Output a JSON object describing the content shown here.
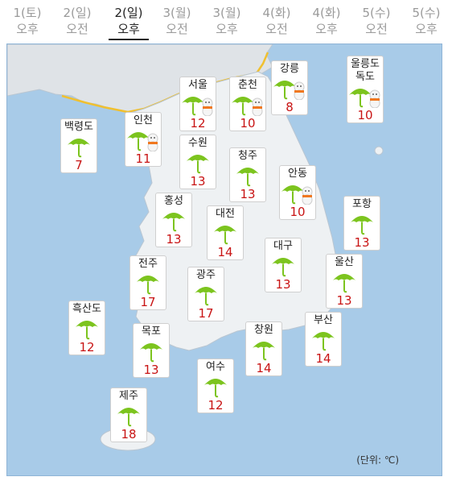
{
  "tabs": [
    {
      "day": "1(토)",
      "period": "오후",
      "active": false
    },
    {
      "day": "2(일)",
      "period": "오전",
      "active": false
    },
    {
      "day": "2(일)",
      "period": "오후",
      "active": true
    },
    {
      "day": "3(월)",
      "period": "오전",
      "active": false
    },
    {
      "day": "3(월)",
      "period": "오후",
      "active": false
    },
    {
      "day": "4(화)",
      "period": "오전",
      "active": false
    },
    {
      "day": "4(화)",
      "period": "오후",
      "active": false
    },
    {
      "day": "5(수)",
      "period": "오전",
      "active": false
    },
    {
      "day": "5(수)",
      "period": "오후",
      "active": false
    }
  ],
  "cities": [
    {
      "name": "서울",
      "temp": "12",
      "icon": "umbrella-snowman-icon"
    },
    {
      "name": "춘천",
      "temp": "10",
      "icon": "umbrella-snowman-icon"
    },
    {
      "name": "강릉",
      "temp": "8",
      "icon": "umbrella-snowman-icon"
    },
    {
      "name": "울릉도\n독도",
      "temp": "10",
      "icon": "umbrella-snowman-icon"
    },
    {
      "name": "백령도",
      "temp": "7",
      "icon": "umbrella-icon"
    },
    {
      "name": "인천",
      "temp": "11",
      "icon": "umbrella-snowman-icon"
    },
    {
      "name": "수원",
      "temp": "13",
      "icon": "umbrella-icon"
    },
    {
      "name": "청주",
      "temp": "13",
      "icon": "umbrella-icon"
    },
    {
      "name": "안동",
      "temp": "10",
      "icon": "umbrella-snowman-icon"
    },
    {
      "name": "홍성",
      "temp": "13",
      "icon": "umbrella-icon"
    },
    {
      "name": "대전",
      "temp": "14",
      "icon": "umbrella-icon"
    },
    {
      "name": "포항",
      "temp": "13",
      "icon": "umbrella-icon"
    },
    {
      "name": "대구",
      "temp": "13",
      "icon": "umbrella-icon"
    },
    {
      "name": "전주",
      "temp": "17",
      "icon": "umbrella-icon"
    },
    {
      "name": "울산",
      "temp": "13",
      "icon": "umbrella-icon"
    },
    {
      "name": "광주",
      "temp": "17",
      "icon": "umbrella-icon"
    },
    {
      "name": "흑산도",
      "temp": "12",
      "icon": "umbrella-icon"
    },
    {
      "name": "목포",
      "temp": "13",
      "icon": "umbrella-icon"
    },
    {
      "name": "창원",
      "temp": "14",
      "icon": "umbrella-icon"
    },
    {
      "name": "부산",
      "temp": "14",
      "icon": "umbrella-icon"
    },
    {
      "name": "여수",
      "temp": "12",
      "icon": "umbrella-icon"
    },
    {
      "name": "제주",
      "temp": "18",
      "icon": "umbrella-icon"
    }
  ],
  "unit_label": "(단위: ℃)",
  "colors": {
    "sea": "#a8cbe8",
    "land": "#eef1f3",
    "temp": "#c81414",
    "umbrella": "#7cc41e",
    "border": "#f0c030"
  }
}
